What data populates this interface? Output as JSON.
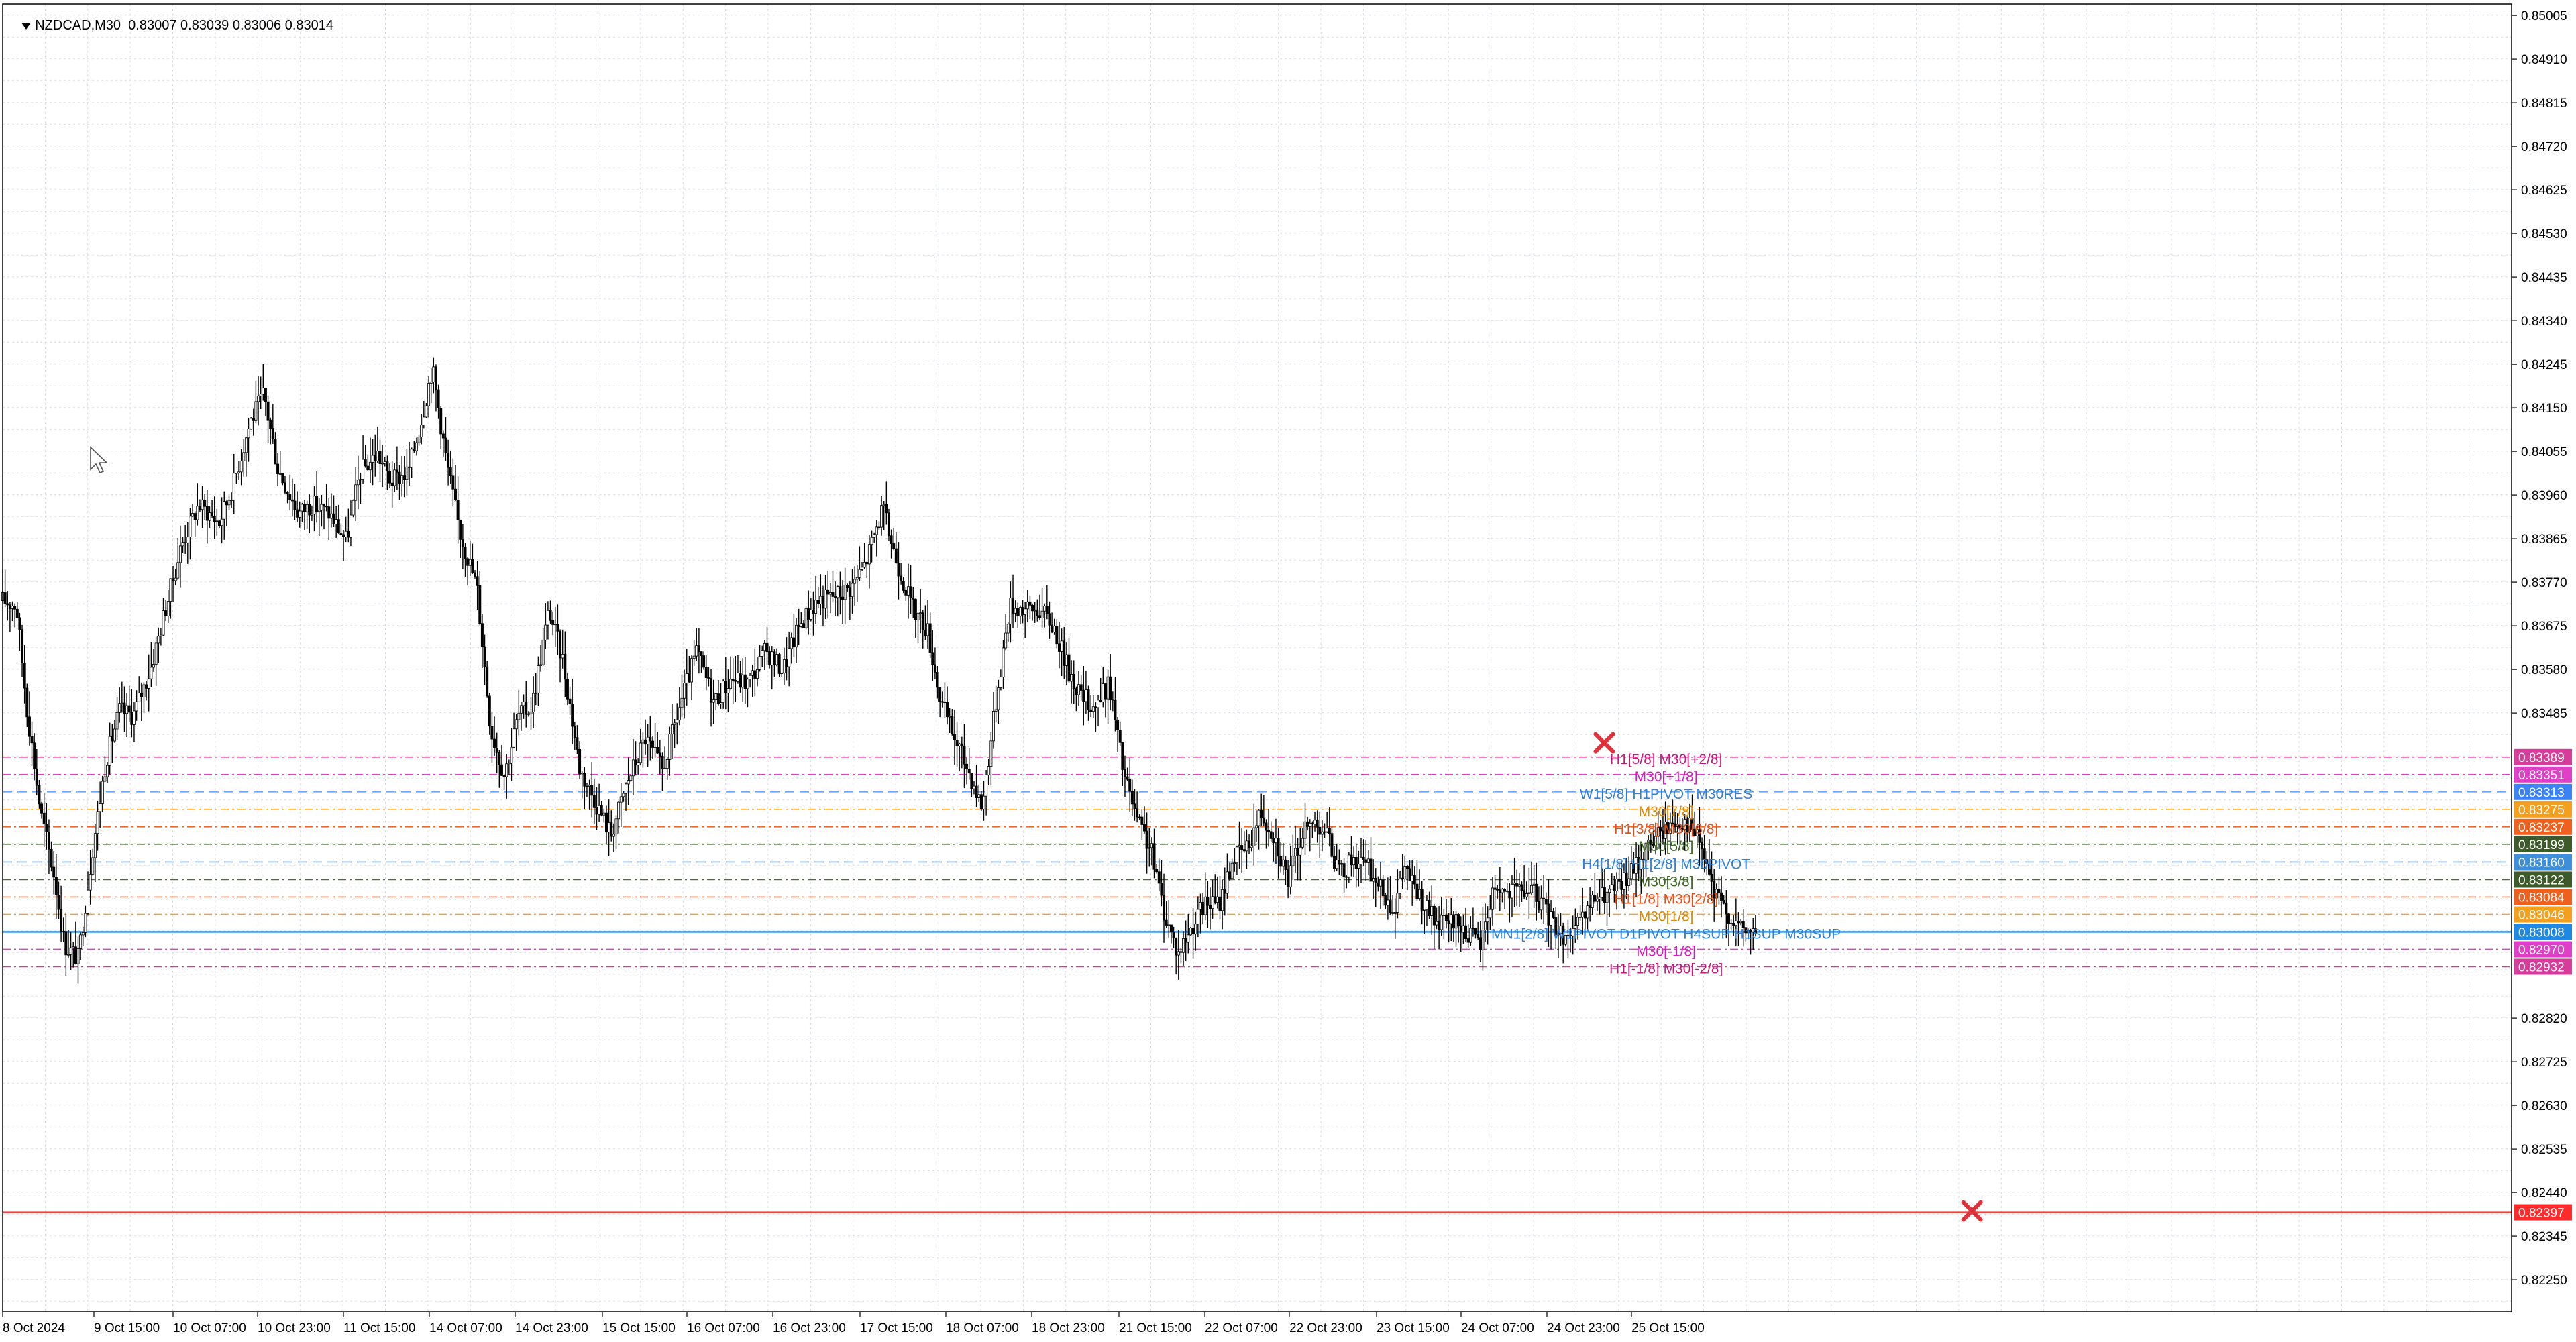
{
  "header": {
    "symbol_tf": "NZDCAD,M30",
    "ohlc": "0.83007 0.83039 0.83006 0.83014"
  },
  "colors": {
    "background": "#ffffff",
    "grid": "#d8dde4",
    "candle": "#000000",
    "current_price": "#1e88e5",
    "stop_level": "#ff3b3b",
    "cross_marker": "#e0323a"
  },
  "icons": [
    "dropdown-triangle-icon",
    "mouse-cursor-icon",
    "cross-marker-icon"
  ],
  "chart_data": {
    "type": "candlestick",
    "symbol": "NZDCAD",
    "timeframe": "M30",
    "grid": true,
    "ylim": [
      0.8218,
      0.8503
    ],
    "y_ticks": [
      "0.85005",
      "0.84910",
      "0.84815",
      "0.84720",
      "0.84625",
      "0.84530",
      "0.84435",
      "0.84340",
      "0.84245",
      "0.84150",
      "0.84055",
      "0.83960",
      "0.83865",
      "0.83770",
      "0.83675",
      "0.83580",
      "0.83485",
      "0.82820",
      "0.82725",
      "0.82630",
      "0.82535",
      "0.82440",
      "0.82345",
      "0.82250"
    ],
    "x_ticks": [
      "8 Oct 2024",
      "9 Oct 15:00",
      "10 Oct 07:00",
      "10 Oct 23:00",
      "11 Oct 15:00",
      "14 Oct 07:00",
      "14 Oct 23:00",
      "15 Oct 15:00",
      "16 Oct 07:00",
      "16 Oct 23:00",
      "17 Oct 15:00",
      "18 Oct 07:00",
      "18 Oct 23:00",
      "21 Oct 15:00",
      "22 Oct 07:00",
      "22 Oct 23:00",
      "23 Oct 15:00",
      "24 Oct 07:00",
      "24 Oct 23:00",
      "25 Oct 15:00"
    ],
    "price_path": [
      [
        0,
        0.8373
      ],
      [
        0.4,
        0.8372
      ],
      [
        0.7,
        0.835
      ],
      [
        1.1,
        0.8327
      ],
      [
        1.5,
        0.8313
      ],
      [
        1.8,
        0.8298
      ],
      [
        2.2,
        0.8295
      ],
      [
        2.6,
        0.8318
      ],
      [
        3.0,
        0.8338
      ],
      [
        3.4,
        0.8349
      ],
      [
        3.8,
        0.8348
      ],
      [
        4.3,
        0.8358
      ],
      [
        4.7,
        0.837
      ],
      [
        5.2,
        0.8385
      ],
      [
        5.7,
        0.8394
      ],
      [
        6.3,
        0.839
      ],
      [
        6.7,
        0.8398
      ],
      [
        7.2,
        0.8412
      ],
      [
        7.6,
        0.8418
      ],
      [
        8.0,
        0.8402
      ],
      [
        8.6,
        0.8392
      ],
      [
        9.0,
        0.8394
      ],
      [
        9.5,
        0.8392
      ],
      [
        10.0,
        0.8386
      ],
      [
        10.4,
        0.8401
      ],
      [
        10.9,
        0.8405
      ],
      [
        11.3,
        0.8399
      ],
      [
        11.8,
        0.8401
      ],
      [
        12.2,
        0.8413
      ],
      [
        12.5,
        0.8424
      ],
      [
        12.9,
        0.8404
      ],
      [
        13.3,
        0.8388
      ],
      [
        13.8,
        0.8376
      ],
      [
        14.2,
        0.8345
      ],
      [
        14.6,
        0.8335
      ],
      [
        15.0,
        0.8348
      ],
      [
        15.4,
        0.835
      ],
      [
        15.9,
        0.8371
      ],
      [
        16.3,
        0.836
      ],
      [
        16.8,
        0.8336
      ],
      [
        17.2,
        0.833
      ],
      [
        17.7,
        0.8322
      ],
      [
        18.2,
        0.8334
      ],
      [
        18.7,
        0.8343
      ],
      [
        19.2,
        0.8336
      ],
      [
        19.7,
        0.835
      ],
      [
        20.2,
        0.8362
      ],
      [
        20.7,
        0.8351
      ],
      [
        21.2,
        0.8356
      ],
      [
        21.7,
        0.8355
      ],
      [
        22.2,
        0.8362
      ],
      [
        22.7,
        0.8358
      ],
      [
        23.2,
        0.8368
      ],
      [
        23.7,
        0.8373
      ],
      [
        24.2,
        0.8374
      ],
      [
        24.7,
        0.8376
      ],
      [
        25.1,
        0.8381
      ],
      [
        25.6,
        0.8393
      ],
      [
        26.0,
        0.8382
      ],
      [
        26.5,
        0.8371
      ],
      [
        26.9,
        0.8367
      ],
      [
        27.3,
        0.8351
      ],
      [
        27.7,
        0.8343
      ],
      [
        28.1,
        0.8336
      ],
      [
        28.5,
        0.8328
      ],
      [
        28.9,
        0.8351
      ],
      [
        29.3,
        0.8372
      ],
      [
        29.8,
        0.8371
      ],
      [
        30.2,
        0.8371
      ],
      [
        30.6,
        0.8367
      ],
      [
        31.0,
        0.8358
      ],
      [
        31.4,
        0.8352
      ],
      [
        31.8,
        0.835
      ],
      [
        32.2,
        0.8355
      ],
      [
        32.6,
        0.8336
      ],
      [
        33.0,
        0.8325
      ],
      [
        33.4,
        0.8319
      ],
      [
        33.8,
        0.8305
      ],
      [
        34.2,
        0.8296
      ],
      [
        34.6,
        0.8302
      ],
      [
        35.0,
        0.8307
      ],
      [
        35.4,
        0.8307
      ],
      [
        35.8,
        0.8317
      ],
      [
        36.2,
        0.8319
      ],
      [
        36.6,
        0.8327
      ],
      [
        37.0,
        0.8322
      ],
      [
        37.4,
        0.8312
      ],
      [
        37.8,
        0.8322
      ],
      [
        38.2,
        0.8325
      ],
      [
        38.5,
        0.8323
      ],
      [
        38.9,
        0.8313
      ],
      [
        39.3,
        0.8317
      ],
      [
        39.7,
        0.8315
      ],
      [
        40.1,
        0.831
      ],
      [
        40.5,
        0.8306
      ],
      [
        40.8,
        0.8315
      ],
      [
        41.3,
        0.8307
      ],
      [
        41.8,
        0.8302
      ],
      [
        42.2,
        0.8303
      ],
      [
        42.6,
        0.8301
      ],
      [
        43.0,
        0.8298
      ],
      [
        43.4,
        0.8311
      ],
      [
        43.8,
        0.8309
      ],
      [
        44.2,
        0.831
      ],
      [
        44.6,
        0.8309
      ],
      [
        45.0,
        0.8304
      ],
      [
        45.4,
        0.83
      ],
      [
        45.9,
        0.8302
      ],
      [
        46.3,
        0.8308
      ],
      [
        46.7,
        0.8309
      ],
      [
        47.1,
        0.8311
      ],
      [
        47.5,
        0.8315
      ],
      [
        47.9,
        0.832
      ],
      [
        48.3,
        0.8323
      ],
      [
        48.7,
        0.8325
      ],
      [
        49.0,
        0.8325
      ],
      [
        49.4,
        0.832
      ],
      [
        49.8,
        0.8309
      ],
      [
        50.2,
        0.8305
      ],
      [
        50.6,
        0.8301
      ],
      [
        51.0,
        0.8301
      ]
    ],
    "levels": [
      {
        "value": 0.83389,
        "label": "0.83389",
        "line_color": "#d63c9a",
        "tag_color": "#d63c9a",
        "style": "dashdot",
        "annotation": "H1[5/8] M30[+2/8]",
        "annotation_color": "#c2187a"
      },
      {
        "value": 0.83351,
        "label": "0.83351",
        "line_color": "#e040c8",
        "tag_color": "#e040c8",
        "style": "dashdot",
        "annotation": "M30[+1/8]",
        "annotation_color": "#d81bc1"
      },
      {
        "value": 0.83313,
        "label": "0.83313",
        "line_color": "#64a8ff",
        "tag_color": "#3b82f6",
        "style": "dash",
        "annotation": "W1[5/8] H1PIVOT M30RES",
        "annotation_color": "#2f7fd3"
      },
      {
        "value": 0.83275,
        "label": "0.83275",
        "line_color": "#f3a23a",
        "tag_color": "#f59f1e",
        "style": "dashdot",
        "annotation": "M30[7/8]",
        "annotation_color": "#e08a00"
      },
      {
        "value": 0.83237,
        "label": "0.83237",
        "line_color": "#ef6a2c",
        "tag_color": "#ef5f1e",
        "style": "dashdot",
        "annotation": "H1[3/8] M30[6/8]",
        "annotation_color": "#e0501b"
      },
      {
        "value": 0.83199,
        "label": "0.83199",
        "line_color": "#4f6b3a",
        "tag_color": "#3d5a2a",
        "style": "dashdot",
        "annotation": "M30[5/8]",
        "annotation_color": "#3d6b23"
      },
      {
        "value": 0.8316,
        "label": "0.83160",
        "line_color": "#5ea4e6",
        "tag_color": "#3e8fdb",
        "style": "dash",
        "annotation": "H4[1/8] H1[2/8] M30PIVOT",
        "annotation_color": "#2f7fd3"
      },
      {
        "value": 0.83122,
        "label": "0.83122",
        "line_color": "#4f6b3a",
        "tag_color": "#3d5a2a",
        "style": "dashdot",
        "annotation": "M30[3/8]",
        "annotation_color": "#3d6b23"
      },
      {
        "value": 0.83084,
        "label": "0.83084",
        "line_color": "#ef6a2c",
        "tag_color": "#ef5f1e",
        "style": "dashdot",
        "annotation": "H1[1/8] M30[2/8]",
        "annotation_color": "#e0501b"
      },
      {
        "value": 0.83046,
        "label": "0.83046",
        "line_color": "#f3a23a",
        "tag_color": "#f59f1e",
        "style": "dashdot",
        "annotation": "M30[1/8]",
        "annotation_color": "#e08a00"
      },
      {
        "value": 0.83008,
        "label": "0.83008",
        "line_color": "#1e88e5",
        "tag_color": "#1e88e5",
        "style": "solid",
        "annotation": "MN1[2/8] W1PIVOT D1PIVOT H4SUP H1SUP M30SUP",
        "annotation_color": "#2f7fd3"
      },
      {
        "value": 0.8297,
        "label": "0.82970",
        "line_color": "#e040c8",
        "tag_color": "#e040c8",
        "style": "dashdot",
        "annotation": "M30[-1/8]",
        "annotation_color": "#d81bc1"
      },
      {
        "value": 0.82932,
        "label": "0.82932",
        "line_color": "#d63c9a",
        "tag_color": "#d63c9a",
        "style": "dashdot",
        "annotation": "H1[-1/8] M30[-2/8]",
        "annotation_color": "#c2187a"
      },
      {
        "value": 0.82397,
        "label": "0.82397",
        "line_color": "#ff3b3b",
        "tag_color": "#ff2a2a",
        "style": "solid",
        "annotation": "",
        "annotation_color": "#ff3b3b"
      }
    ],
    "markers": [
      {
        "type": "cross",
        "x": 46.6,
        "y": 0.8342
      },
      {
        "type": "cross",
        "x": 57.3,
        "y": 0.824
      }
    ]
  }
}
